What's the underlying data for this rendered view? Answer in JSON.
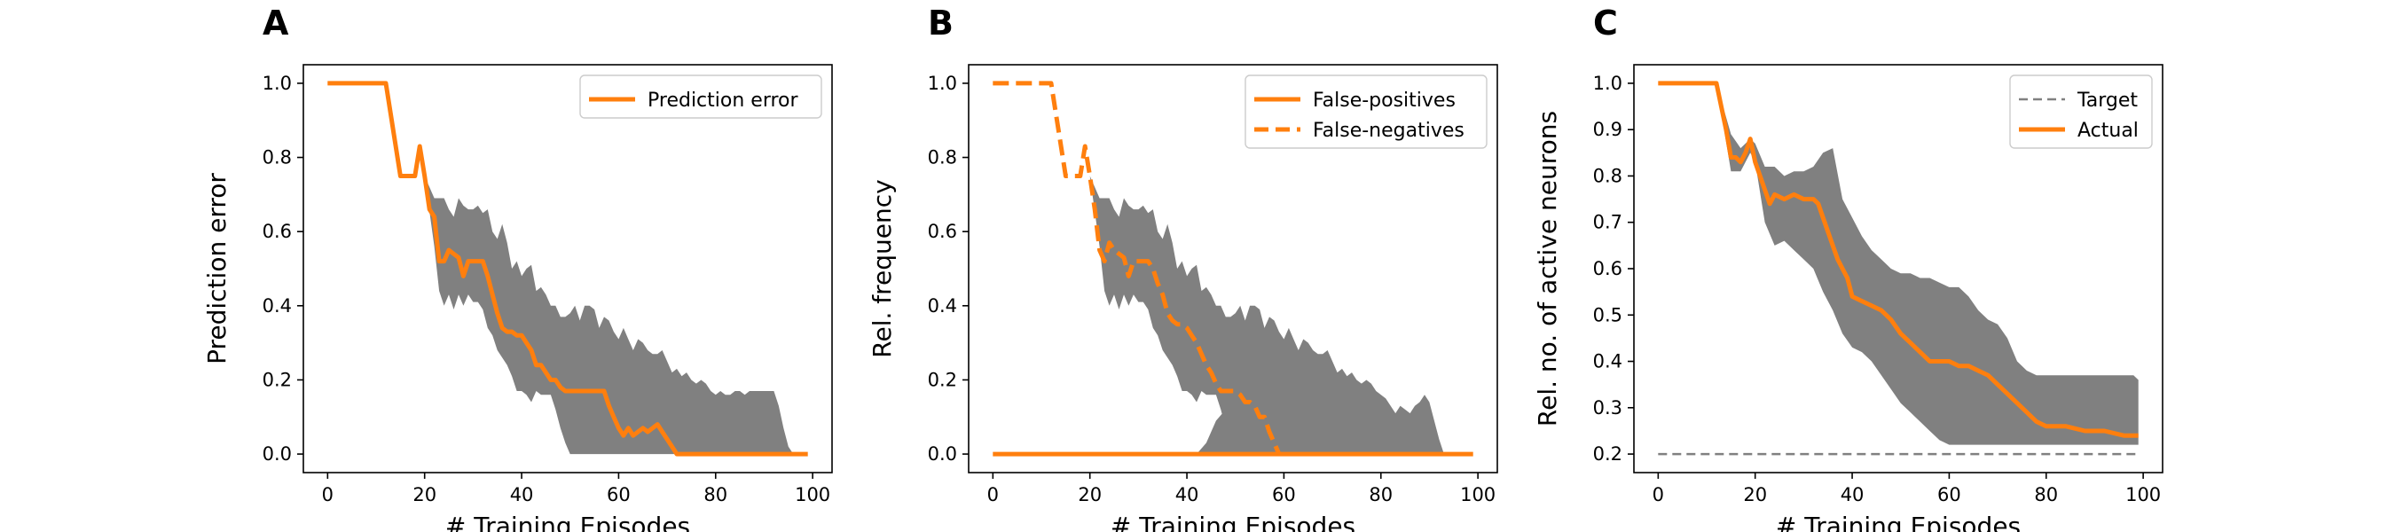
{
  "colors": {
    "line": "#ff7f0e",
    "band": "#808080",
    "target": "#808080",
    "axis": "#000000"
  },
  "chart_data": [
    {
      "type": "line",
      "panel_label": "A",
      "xlabel": "# Training Episodes",
      "ylabel": "Prediction error",
      "xlim": [
        -5,
        104
      ],
      "ylim": [
        -0.05,
        1.05
      ],
      "xticks": [
        0,
        20,
        40,
        60,
        80,
        100
      ],
      "yticks": [
        0.0,
        0.2,
        0.4,
        0.6,
        0.8,
        1.0
      ],
      "ytick_decimals": 1,
      "legend_loc": "top-right",
      "band": {
        "x": [
          20,
          22,
          23,
          24,
          25,
          26,
          27,
          28,
          29,
          30,
          31,
          32,
          33,
          34,
          35,
          36,
          37,
          38,
          39,
          40,
          41,
          42,
          43,
          44,
          45,
          46,
          47,
          48,
          49,
          50,
          51,
          52,
          53,
          54,
          55,
          56,
          57,
          58,
          59,
          60,
          61,
          62,
          63,
          64,
          65,
          66,
          67,
          68,
          69,
          70,
          71,
          72,
          73,
          74,
          75,
          76,
          77,
          78,
          79,
          80,
          81,
          82,
          83,
          84,
          85,
          86,
          87,
          88,
          89,
          90,
          91,
          92,
          93,
          94,
          95,
          96,
          97,
          98
        ],
        "upper": [
          0.75,
          0.69,
          0.69,
          0.69,
          0.66,
          0.64,
          0.69,
          0.67,
          0.66,
          0.66,
          0.67,
          0.65,
          0.66,
          0.6,
          0.58,
          0.62,
          0.57,
          0.5,
          0.52,
          0.48,
          0.5,
          0.51,
          0.44,
          0.45,
          0.43,
          0.4,
          0.4,
          0.37,
          0.37,
          0.38,
          0.4,
          0.36,
          0.4,
          0.4,
          0.39,
          0.34,
          0.37,
          0.36,
          0.33,
          0.31,
          0.34,
          0.31,
          0.28,
          0.31,
          0.3,
          0.28,
          0.27,
          0.27,
          0.28,
          0.25,
          0.22,
          0.23,
          0.21,
          0.22,
          0.2,
          0.19,
          0.2,
          0.19,
          0.17,
          0.16,
          0.17,
          0.16,
          0.16,
          0.17,
          0.17,
          0.16,
          0.17,
          0.17,
          0.17,
          0.17,
          0.17,
          0.17,
          0.13,
          0.07,
          0.02,
          0.0,
          0.0,
          0.0
        ],
        "lower": [
          0.75,
          0.56,
          0.44,
          0.4,
          0.43,
          0.39,
          0.43,
          0.4,
          0.43,
          0.41,
          0.41,
          0.39,
          0.34,
          0.32,
          0.28,
          0.26,
          0.24,
          0.21,
          0.17,
          0.17,
          0.16,
          0.14,
          0.17,
          0.16,
          0.16,
          0.16,
          0.12,
          0.07,
          0.03,
          0.0,
          0.0,
          0.0,
          0.0,
          0.0,
          0.0,
          0.0,
          0.0,
          0.0,
          0.0,
          0.0,
          0.0,
          0.0,
          0.0,
          0.0,
          0.0,
          0.0,
          0.0,
          0.0,
          0.0,
          0.0,
          0.0,
          0.0,
          0.0,
          0.0,
          0.0,
          0.0,
          0.0,
          0.0,
          0.0,
          0.0,
          0.0,
          0.0,
          0.0,
          0.0,
          0.0,
          0.0,
          0.0,
          0.0,
          0.0,
          0.0,
          0.0,
          0.0,
          0.0,
          0.0,
          0.0,
          0.0,
          0.0,
          0.0
        ]
      },
      "series": [
        {
          "name": "Prediction error",
          "style": "solid",
          "x": [
            0,
            12,
            15,
            16,
            17,
            18,
            19,
            20,
            21,
            22,
            23,
            24,
            25,
            26,
            27,
            28,
            29,
            30,
            31,
            32,
            33,
            34,
            35,
            36,
            37,
            38,
            39,
            40,
            41,
            42,
            43,
            44,
            45,
            46,
            47,
            48,
            49,
            50,
            51,
            52,
            53,
            54,
            55,
            56,
            57,
            58,
            59,
            60,
            61,
            62,
            63,
            64,
            65,
            66,
            67,
            68,
            69,
            70,
            71,
            72,
            99
          ],
          "y": [
            1.0,
            1.0,
            0.75,
            0.75,
            0.75,
            0.75,
            0.83,
            0.75,
            0.66,
            0.64,
            0.52,
            0.52,
            0.55,
            0.54,
            0.53,
            0.48,
            0.52,
            0.52,
            0.52,
            0.52,
            0.48,
            0.43,
            0.38,
            0.34,
            0.33,
            0.33,
            0.32,
            0.32,
            0.3,
            0.28,
            0.24,
            0.24,
            0.22,
            0.2,
            0.2,
            0.18,
            0.17,
            0.17,
            0.17,
            0.17,
            0.17,
            0.17,
            0.17,
            0.17,
            0.17,
            0.13,
            0.1,
            0.07,
            0.05,
            0.07,
            0.05,
            0.06,
            0.07,
            0.06,
            0.07,
            0.08,
            0.06,
            0.04,
            0.02,
            0.0,
            0.0
          ]
        }
      ]
    },
    {
      "type": "line",
      "panel_label": "B",
      "xlabel": "# Training Episodes",
      "ylabel": "Rel. frequency",
      "xlim": [
        -5,
        104
      ],
      "ylim": [
        -0.05,
        1.05
      ],
      "xticks": [
        0,
        20,
        40,
        60,
        80,
        100
      ],
      "yticks": [
        0.0,
        0.2,
        0.4,
        0.6,
        0.8,
        1.0
      ],
      "ytick_decimals": 1,
      "legend_loc": "top-right",
      "band": {
        "x": [
          20,
          22,
          23,
          24,
          25,
          26,
          27,
          28,
          29,
          30,
          31,
          32,
          33,
          34,
          35,
          36,
          37,
          38,
          39,
          40,
          41,
          42,
          43,
          44,
          45,
          46,
          47,
          48,
          49,
          50,
          51,
          52,
          53,
          54,
          55,
          56,
          57,
          58,
          59,
          60,
          61,
          62,
          63,
          64,
          65,
          66,
          67,
          68,
          69,
          70,
          71,
          72,
          73,
          74,
          75,
          76,
          77,
          78,
          79,
          80,
          81,
          82,
          83,
          84,
          85,
          86,
          87,
          88,
          89,
          90,
          91,
          92,
          93
        ],
        "upper": [
          0.75,
          0.69,
          0.69,
          0.69,
          0.66,
          0.64,
          0.69,
          0.67,
          0.66,
          0.66,
          0.67,
          0.65,
          0.66,
          0.6,
          0.58,
          0.62,
          0.57,
          0.5,
          0.52,
          0.48,
          0.5,
          0.51,
          0.44,
          0.45,
          0.43,
          0.4,
          0.4,
          0.37,
          0.37,
          0.38,
          0.4,
          0.36,
          0.4,
          0.4,
          0.39,
          0.34,
          0.37,
          0.36,
          0.33,
          0.31,
          0.34,
          0.31,
          0.28,
          0.31,
          0.3,
          0.28,
          0.27,
          0.27,
          0.28,
          0.25,
          0.22,
          0.23,
          0.21,
          0.22,
          0.2,
          0.19,
          0.2,
          0.19,
          0.17,
          0.16,
          0.15,
          0.13,
          0.11,
          0.13,
          0.12,
          0.11,
          0.13,
          0.14,
          0.16,
          0.14,
          0.09,
          0.04,
          0.0
        ],
        "lower": [
          0.75,
          0.56,
          0.44,
          0.4,
          0.43,
          0.39,
          0.43,
          0.4,
          0.43,
          0.41,
          0.41,
          0.39,
          0.34,
          0.32,
          0.28,
          0.26,
          0.24,
          0.21,
          0.17,
          0.17,
          0.16,
          0.14,
          0.17,
          0.16,
          0.16,
          0.16,
          0.12,
          0.07,
          0.03,
          0.0,
          0.0,
          0.0,
          0.0,
          0.0,
          0.0,
          0.0,
          0.0,
          0.0,
          0.0,
          0.0,
          0.0,
          0.0,
          0.0,
          0.0,
          0.0,
          0.0,
          0.0,
          0.0,
          0.0,
          0.0,
          0.0,
          0.0,
          0.0,
          0.0,
          0.0,
          0.0,
          0.0,
          0.0,
          0.0,
          0.0,
          0.0,
          0.0,
          0.0,
          0.0,
          0.0,
          0.0,
          0.0,
          0.0,
          0.0,
          0.0,
          0.0,
          0.0,
          0.0
        ]
      },
      "band2": {
        "x": [
          42,
          44,
          46,
          48,
          50,
          52,
          54,
          56,
          58,
          60
        ],
        "upper": [
          0.0,
          0.03,
          0.09,
          0.12,
          0.12,
          0.1,
          0.08,
          0.06,
          0.03,
          0.0
        ],
        "lower": [
          0.0,
          0.0,
          0.0,
          0.0,
          0.0,
          0.0,
          0.0,
          0.0,
          0.0,
          0.0
        ]
      },
      "series": [
        {
          "name": "False-positives",
          "style": "solid",
          "x": [
            0,
            99
          ],
          "y": [
            0.0,
            0.0
          ]
        },
        {
          "name": "False-negatives",
          "style": "dashed",
          "x": [
            0,
            12,
            15,
            16,
            17,
            18,
            19,
            20,
            21,
            22,
            23,
            24,
            25,
            26,
            27,
            28,
            29,
            30,
            31,
            32,
            33,
            34,
            35,
            36,
            37,
            38,
            39,
            40,
            41,
            42,
            43,
            44,
            45,
            46,
            47,
            48,
            49,
            50,
            51,
            52,
            53,
            54,
            55,
            56,
            57,
            58,
            59
          ],
          "y": [
            1.0,
            1.0,
            0.75,
            0.75,
            0.75,
            0.75,
            0.83,
            0.75,
            0.66,
            0.55,
            0.52,
            0.57,
            0.55,
            0.54,
            0.53,
            0.48,
            0.52,
            0.52,
            0.52,
            0.52,
            0.5,
            0.46,
            0.43,
            0.38,
            0.36,
            0.35,
            0.35,
            0.34,
            0.32,
            0.3,
            0.27,
            0.24,
            0.22,
            0.19,
            0.17,
            0.17,
            0.17,
            0.17,
            0.16,
            0.14,
            0.14,
            0.13,
            0.1,
            0.1,
            0.06,
            0.03,
            0.0
          ]
        }
      ]
    },
    {
      "type": "line",
      "panel_label": "C",
      "xlabel": "# Training Episodes",
      "ylabel": "Rel. no. of active neurons",
      "xlim": [
        -5,
        104
      ],
      "ylim": [
        0.16,
        1.04
      ],
      "xticks": [
        0,
        20,
        40,
        60,
        80,
        100
      ],
      "yticks": [
        0.2,
        0.3,
        0.4,
        0.5,
        0.6,
        0.7,
        0.8,
        0.9,
        1.0
      ],
      "ytick_decimals": 1,
      "legend_loc": "top-right",
      "band": {
        "x": [
          12,
          15,
          17,
          19,
          20,
          22,
          24,
          26,
          28,
          30,
          32,
          34,
          36,
          38,
          40,
          42,
          44,
          46,
          48,
          50,
          52,
          54,
          56,
          58,
          60,
          62,
          64,
          66,
          68,
          70,
          72,
          74,
          76,
          78,
          80,
          82,
          84,
          86,
          88,
          90,
          92,
          94,
          96,
          98,
          99
        ],
        "upper": [
          1.0,
          0.89,
          0.86,
          0.88,
          0.87,
          0.82,
          0.82,
          0.8,
          0.81,
          0.81,
          0.82,
          0.85,
          0.86,
          0.75,
          0.71,
          0.67,
          0.64,
          0.62,
          0.6,
          0.59,
          0.59,
          0.58,
          0.58,
          0.57,
          0.56,
          0.56,
          0.54,
          0.51,
          0.49,
          0.48,
          0.45,
          0.4,
          0.38,
          0.37,
          0.37,
          0.37,
          0.37,
          0.37,
          0.37,
          0.37,
          0.37,
          0.37,
          0.37,
          0.37,
          0.36
        ],
        "lower": [
          1.0,
          0.81,
          0.81,
          0.85,
          0.83,
          0.7,
          0.65,
          0.66,
          0.64,
          0.62,
          0.6,
          0.55,
          0.51,
          0.46,
          0.43,
          0.42,
          0.4,
          0.37,
          0.34,
          0.31,
          0.29,
          0.27,
          0.25,
          0.23,
          0.22,
          0.22,
          0.22,
          0.22,
          0.22,
          0.22,
          0.22,
          0.22,
          0.22,
          0.22,
          0.22,
          0.22,
          0.22,
          0.22,
          0.22,
          0.22,
          0.22,
          0.22,
          0.22,
          0.22,
          0.22
        ]
      },
      "series": [
        {
          "name": "Target",
          "style": "dashed-thin",
          "x": [
            0,
            99
          ],
          "y": [
            0.2,
            0.2
          ]
        },
        {
          "name": "Actual",
          "style": "solid",
          "x": [
            0,
            12,
            14,
            15,
            16,
            17,
            18,
            19,
            20,
            21,
            22,
            23,
            24,
            26,
            28,
            30,
            32,
            33,
            34,
            35,
            36,
            37,
            38,
            39,
            40,
            42,
            44,
            46,
            48,
            50,
            52,
            54,
            56,
            58,
            60,
            62,
            64,
            66,
            68,
            70,
            72,
            74,
            76,
            78,
            80,
            84,
            88,
            92,
            96,
            99
          ],
          "y": [
            1.0,
            1.0,
            0.9,
            0.84,
            0.84,
            0.83,
            0.85,
            0.88,
            0.83,
            0.8,
            0.77,
            0.74,
            0.76,
            0.75,
            0.76,
            0.75,
            0.75,
            0.74,
            0.71,
            0.68,
            0.65,
            0.62,
            0.6,
            0.58,
            0.54,
            0.53,
            0.52,
            0.51,
            0.49,
            0.46,
            0.44,
            0.42,
            0.4,
            0.4,
            0.4,
            0.39,
            0.39,
            0.38,
            0.37,
            0.35,
            0.33,
            0.31,
            0.29,
            0.27,
            0.26,
            0.26,
            0.25,
            0.25,
            0.24,
            0.24
          ]
        }
      ]
    }
  ]
}
